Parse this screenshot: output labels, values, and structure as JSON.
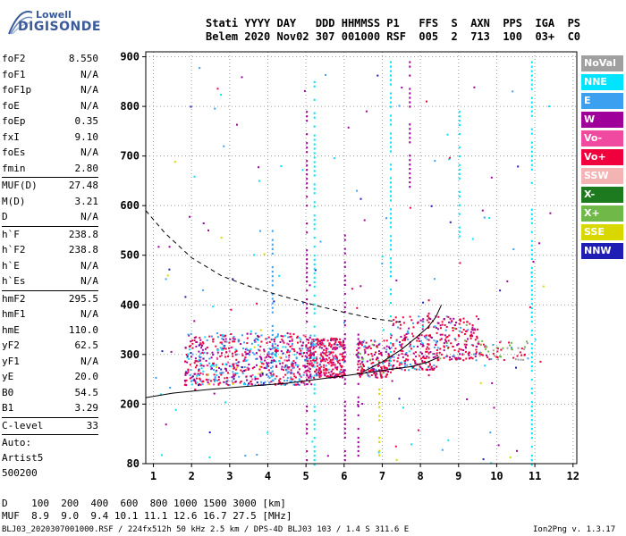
{
  "logo": {
    "top": "Lowell",
    "bottom": "DIGISONDE"
  },
  "header": {
    "labels": "Stati YYYY DAY   DDD HHMMSS P1   FFS  S  AXN  PPS  IGA  PS",
    "values": "Belem 2020 Nov02 307 001000 RSF  005  2  713  100  03+  C0"
  },
  "left_panel": {
    "groups": [
      [
        {
          "label": "foF2",
          "value": "8.550"
        },
        {
          "label": "foF1",
          "value": "N/A"
        },
        {
          "label": "foF1p",
          "value": "N/A"
        },
        {
          "label": "foE",
          "value": "N/A"
        },
        {
          "label": "foEp",
          "value": "0.35"
        },
        {
          "label": "fxI",
          "value": "9.10"
        },
        {
          "label": "foEs",
          "value": "N/A"
        },
        {
          "label": "fmin",
          "value": "2.80"
        }
      ],
      [
        {
          "label": "MUF(D)",
          "value": "27.48"
        },
        {
          "label": "M(D)",
          "value": "3.21"
        },
        {
          "label": "D",
          "value": "N/A"
        }
      ],
      [
        {
          "label": "h`F",
          "value": "238.8"
        },
        {
          "label": "h`F2",
          "value": "238.8"
        },
        {
          "label": "h`E",
          "value": "N/A"
        },
        {
          "label": "h`Es",
          "value": "N/A"
        }
      ],
      [
        {
          "label": "hmF2",
          "value": "295.5"
        },
        {
          "label": "hmF1",
          "value": "N/A"
        },
        {
          "label": "hmE",
          "value": "110.0"
        },
        {
          "label": "yF2",
          "value": "62.5"
        },
        {
          "label": "yF1",
          "value": "N/A"
        },
        {
          "label": "yE",
          "value": "20.0"
        },
        {
          "label": "B0",
          "value": "54.5"
        },
        {
          "label": "B1",
          "value": "3.29"
        }
      ],
      [
        {
          "label": "C-level",
          "value": "33"
        }
      ]
    ],
    "auto_lines": [
      "Auto:",
      "Artist5",
      "500200"
    ]
  },
  "legend": [
    {
      "label": "NoVal",
      "color": "#a0a0a0"
    },
    {
      "label": "NNE",
      "color": "#00e4ff"
    },
    {
      "label": "E",
      "color": "#3ca0f0"
    },
    {
      "label": "W",
      "color": "#a0009a"
    },
    {
      "label": "Vo-",
      "color": "#f04aa0"
    },
    {
      "label": "Vo+",
      "color": "#f0003c"
    },
    {
      "label": "SSW",
      "color": "#f4b4b4"
    },
    {
      "label": "X-",
      "color": "#1e7a1e"
    },
    {
      "label": "X+",
      "color": "#70b848"
    },
    {
      "label": "SSE",
      "color": "#d8d800"
    },
    {
      "label": "NNW",
      "color": "#1e1eb4"
    }
  ],
  "bottom": {
    "d_line": "D    100  200  400  600  800 1000 1500 3000 [km]",
    "muf_line": "MUF  8.9  9.0  9.4 10.1 11.1 12.6 16.7 27.5 [MHz]",
    "footer_left": "BLJ03_2020307001000.RSF / 224fx512h 50 kHz 2.5 km / DPS-4D BLJ03 103 / 1.4 S 311.6 E",
    "footer_right": "Ion2Png v. 1.3.17"
  },
  "chart_data": {
    "type": "scatter",
    "title": "",
    "xlabel": "",
    "ylabel": "",
    "xlim": [
      0.8,
      12.1
    ],
    "ylim": [
      80,
      910
    ],
    "x_ticks": [
      1,
      2,
      3,
      4,
      5,
      6,
      7,
      8,
      9,
      10,
      11,
      12
    ],
    "x_tick_labels": [
      "1",
      "2",
      "3",
      "4",
      "5",
      "6",
      "7",
      "8",
      "9",
      "10",
      "11",
      "12"
    ],
    "y_ticks": [
      80,
      200,
      300,
      400,
      500,
      600,
      700,
      800,
      900
    ],
    "y_tick_labels": [
      "80",
      "200",
      "300",
      "400",
      "500",
      "600",
      "700",
      "800",
      "900"
    ],
    "grid": true,
    "curves": [
      {
        "name": "profile_solid",
        "style": "solid",
        "x": [
          0.8,
          1.5,
          2.5,
          3.5,
          4.5,
          5.5,
          6.5,
          7.2,
          7.8,
          8.2,
          8.5
        ],
        "y": [
          213,
          222,
          230,
          236,
          242,
          252,
          262,
          270,
          276,
          285,
          295
        ]
      },
      {
        "name": "profile_rising",
        "style": "solid",
        "x": [
          6.5,
          7.0,
          7.5,
          7.9,
          8.2,
          8.4,
          8.55
        ],
        "y": [
          265,
          285,
          310,
          335,
          355,
          375,
          400
        ]
      },
      {
        "name": "profile_dashed",
        "style": "dashed",
        "x": [
          0.8,
          1.3,
          2.0,
          2.8,
          3.6,
          4.5,
          5.3,
          6.0,
          6.8,
          7.5
        ],
        "y": [
          590,
          545,
          495,
          458,
          435,
          415,
          398,
          385,
          372,
          365
        ]
      }
    ],
    "echo_clusters": [
      {
        "x_range": [
          1.8,
          5.2
        ],
        "y_range": [
          240,
          345
        ],
        "count": 700,
        "color_weights": {
          "#f0003c": 4,
          "#a0009a": 3,
          "#3ca0f0": 3,
          "#00e4ff": 1,
          "#1e1eb4": 0.4,
          "#d8d800": 0.3,
          "#f04aa0": 0.6
        }
      },
      {
        "x_range": [
          5.0,
          6.0
        ],
        "y_range": [
          255,
          335
        ],
        "count": 300,
        "color_weights": {
          "#f0003c": 5,
          "#a0009a": 2,
          "#3ca0f0": 1,
          "#f04aa0": 0.5
        }
      },
      {
        "x_range": [
          6.3,
          7.2
        ],
        "y_range": [
          255,
          330
        ],
        "count": 180,
        "color_weights": {
          "#f0003c": 4,
          "#a0009a": 2,
          "#3ca0f0": 0.8,
          "#70b848": 0.4
        }
      },
      {
        "x_range": [
          7.2,
          8.4
        ],
        "y_range": [
          270,
          380
        ],
        "count": 200,
        "color_weights": {
          "#f0003c": 4,
          "#a0009a": 2,
          "#3ca0f0": 1,
          "#00e4ff": 0.4
        }
      },
      {
        "x_range": [
          8.4,
          9.5
        ],
        "y_range": [
          290,
          380
        ],
        "count": 160,
        "color_weights": {
          "#f0003c": 4,
          "#a0009a": 2,
          "#3ca0f0": 1,
          "#70b848": 0.4
        }
      },
      {
        "x_range": [
          9.5,
          10.8
        ],
        "y_range": [
          290,
          330
        ],
        "count": 60,
        "color_weights": {
          "#f0003c": 3,
          "#70b848": 2,
          "#a0a0a0": 1,
          "#3ca0f0": 0.5
        }
      },
      {
        "x_range": [
          1.0,
          11.5
        ],
        "y_range": [
          80,
          900
        ],
        "count": 150,
        "color_weights": {
          "#a0009a": 3,
          "#3ca0f0": 2,
          "#00e4ff": 2,
          "#f0003c": 1,
          "#1e1eb4": 1,
          "#d8d800": 0.5
        }
      }
    ],
    "echo_columns": [
      {
        "x": 4.1,
        "y_range": [
          250,
          560
        ],
        "color": "#3ca0f0"
      },
      {
        "x": 5.0,
        "y_range": [
          80,
          800
        ],
        "color": "#a0009a"
      },
      {
        "x": 5.2,
        "y_range": [
          80,
          860
        ],
        "color": "#00e4ff"
      },
      {
        "x": 6.0,
        "y_range": [
          80,
          560
        ],
        "color": "#a0009a"
      },
      {
        "x": 6.35,
        "y_range": [
          80,
          360
        ],
        "color": "#a0009a"
      },
      {
        "x": 6.9,
        "y_range": [
          90,
          240
        ],
        "color": "#d8d800"
      },
      {
        "x": 7.2,
        "y_range": [
          280,
          900
        ],
        "color": "#00e4ff"
      },
      {
        "x": 7.7,
        "y_range": [
          640,
          900
        ],
        "color": "#a0009a"
      },
      {
        "x": 8.2,
        "y_range": [
          260,
          420
        ],
        "color": "#f0003c"
      },
      {
        "x": 9.0,
        "y_range": [
          540,
          800
        ],
        "color": "#00e4ff"
      },
      {
        "x": 10.9,
        "y_range": [
          80,
          900
        ],
        "color": "#00e4ff"
      }
    ]
  }
}
